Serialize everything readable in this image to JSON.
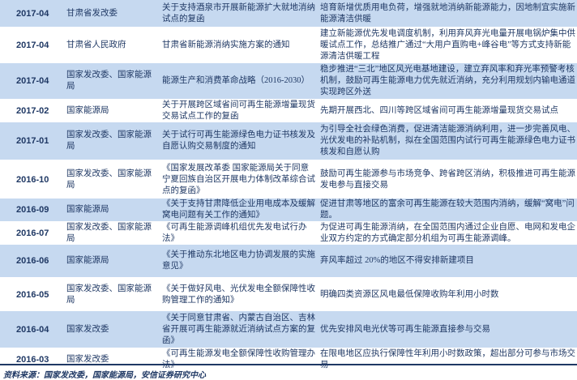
{
  "rows": [
    {
      "date": "2017-04",
      "agency": "甘肃省发改委",
      "title": "关于支持酒泉市开展新能源扩大就地消纳试点的复函",
      "content": "培育新增优质用电负荷，增强就地消纳新能源能力，因地制宜实施新能源清洁供暖"
    },
    {
      "date": "2017-04",
      "agency": "甘肃省人民政府",
      "title": "甘肃省新能源消纳实施方案的通知",
      "content": "建立新能源优先发电调度机制，利用弃风弃光电量开展电锅炉集中供暖试点工作，总结推广通过“大用户直购电+峰谷电”等方式支持新能源清洁供暖工程"
    },
    {
      "date": "2017-04",
      "agency": "国家发改委、国家能源局",
      "title": "能源生产和消费革命战略（2016-2030）",
      "content": "稳步推进“三北”地区风光电基地建设，建立弃风率和弃光率预警考核机制，鼓励可再生能源电力优先就近消纳，充分利用规划内输电通道实现跨区外送"
    },
    {
      "date": "2017-02",
      "agency": "国家能源局",
      "title": "关于开展跨区域省间可再生能源增量现货交易试点工作的复函",
      "content": "先期开展西北、四川等跨区域省间可再生能源增量现货交易试点"
    },
    {
      "date": "2017-01",
      "agency": "国家发改委、国家能源局",
      "title": "关于试行可再生能源绿色电力证书核发及自愿认购交易制度的通知",
      "content": "为引导全社会绿色消费，促进清洁能源消纳利用，进一步完善风电、光伏发电的补贴机制，拟在全国范围内试行可再生能源绿色电力证书核发和自愿认购"
    },
    {
      "date": "2016-10",
      "agency": "国家发改委、国家能源局",
      "title": "《国家发展改革委 国家能源局关于同意宁夏回族自治区开展电力体制改革综合试点的复函》",
      "content": "鼓励可再生能源参与市场竞争、跨省跨区消纳，积极推进可再生能源发电参与直接交易"
    },
    {
      "date": "2016-09",
      "agency": "国家能源局",
      "title": "《关于支持甘肃降低企业用电成本及缓解窝电问题有关工作的通知》",
      "content": "促进甘肃等地区的富余可再生能源在较大范围内消纳，缓解“窝电”问题。"
    },
    {
      "date": "2016-07",
      "agency": "国家发改委、国家能源局",
      "title": "《可再生能源调峰机组优先发电试行办法》",
      "content": "为促进可再生能源消纳，在全国范围内通过企业自愿、电网和发电企业双方约定的方式确定部分机组为可再生能源调峰。"
    },
    {
      "date": "2016-06",
      "agency": "国家能源局",
      "title": "《关于推动东北地区电力协调发展的实施意见》",
      "content": "弃风率超过 20%的地区不得安排新建项目"
    },
    {
      "date": "2016-05",
      "agency": "国家发改委、国家能源局",
      "title": "《关于做好风电、光伏发电全额保障性收购管理工作的通知》",
      "content": "明确四类资源区风电最低保障收购年利用小时数"
    },
    {
      "date": "2016-04",
      "agency": "国家发改委",
      "title": "《关于同意甘肃省、内蒙古自治区、吉林省开展可再生能源就近消纳试点方案的复函》",
      "content": "优先安排风电光伏等可再生能源直接参与交易"
    },
    {
      "date": "2016-03",
      "agency": "国家发改委",
      "title": "《可再生能源发电全额保障性收购管理办法》",
      "content": "在限电地区应执行保障性年利用小时数政策，超出部分可参与市场交易"
    }
  ],
  "source": "资料来源：国家发改委，国家能源局，安信证券研究中心",
  "colors": {
    "row_highlight": "#c6d9f0",
    "text": "#1f3864"
  }
}
